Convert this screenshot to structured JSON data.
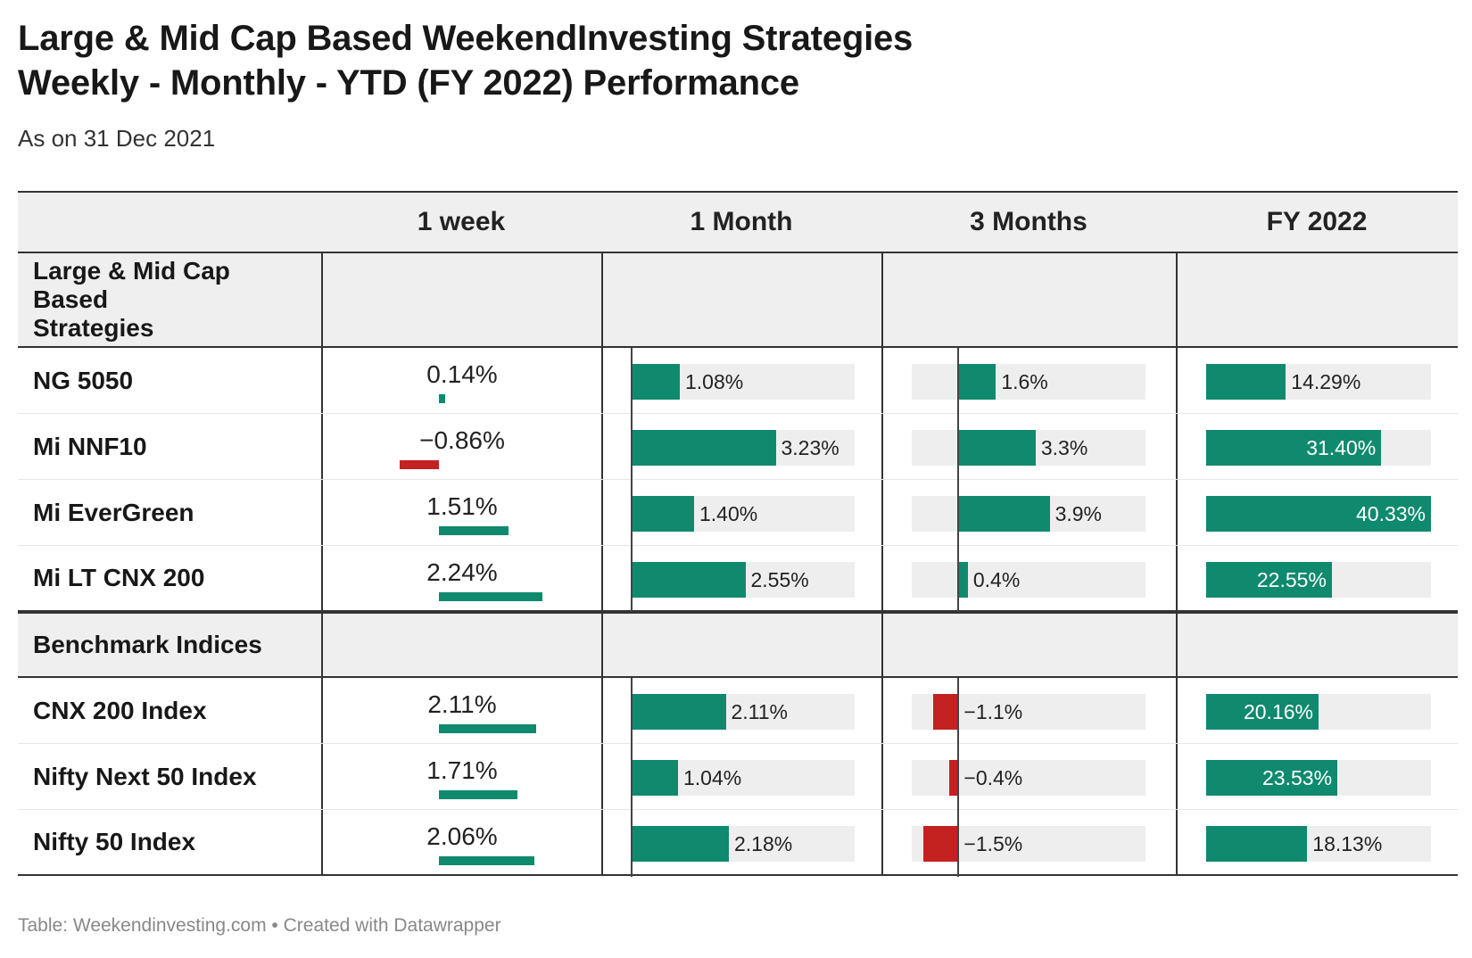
{
  "title_line1": "Large & Mid Cap Based WeekendInvesting Strategies",
  "title_line2": "Weekly - Monthly - YTD (FY 2022) Performance",
  "subtitle": "As on 31 Dec 2021",
  "footer": "Table: Weekendinvesting.com • Created with Datawrapper",
  "colors": {
    "positive": "#0f8a6e",
    "negative": "#c42121",
    "track": "#eeeeee"
  },
  "chart_data": {
    "type": "table",
    "columns": [
      "",
      "1 week",
      "1 Month",
      "3 Months",
      "FY 2022"
    ],
    "scales": {
      "week": [
        -2.5,
        2.5
      ],
      "month": [
        0,
        5
      ],
      "three_month": [
        -2,
        8
      ],
      "fy": [
        0,
        40.33
      ]
    },
    "sections": [
      {
        "label": "Large & Mid Cap Based Strategies",
        "rows": [
          {
            "name": "NG 5050",
            "week": 0.14,
            "week_label": "0.14%",
            "month": 1.08,
            "month_label": "1.08%",
            "three_month": 1.6,
            "three_month_label": "1.6%",
            "fy": 14.29,
            "fy_label": "14.29%"
          },
          {
            "name": "Mi NNF10",
            "week": -0.86,
            "week_label": "−0.86%",
            "month": 3.23,
            "month_label": "3.23%",
            "three_month": 3.3,
            "three_month_label": "3.3%",
            "fy": 31.4,
            "fy_label": "31.40%"
          },
          {
            "name": "Mi EverGreen",
            "week": 1.51,
            "week_label": "1.51%",
            "month": 1.4,
            "month_label": "1.40%",
            "three_month": 3.9,
            "three_month_label": "3.9%",
            "fy": 40.33,
            "fy_label": "40.33%"
          },
          {
            "name": "Mi LT CNX 200",
            "week": 2.24,
            "week_label": "2.24%",
            "month": 2.55,
            "month_label": "2.55%",
            "three_month": 0.4,
            "three_month_label": "0.4%",
            "fy": 22.55,
            "fy_label": "22.55%"
          }
        ]
      },
      {
        "label": "Benchmark Indices",
        "rows": [
          {
            "name": "CNX 200 Index",
            "week": 2.11,
            "week_label": "2.11%",
            "month": 2.11,
            "month_label": "2.11%",
            "three_month": -1.1,
            "three_month_label": "−1.1%",
            "fy": 20.16,
            "fy_label": "20.16%"
          },
          {
            "name": "Nifty Next 50 Index",
            "week": 1.71,
            "week_label": "1.71%",
            "month": 1.04,
            "month_label": "1.04%",
            "three_month": -0.4,
            "three_month_label": "−0.4%",
            "fy": 23.53,
            "fy_label": "23.53%"
          },
          {
            "name": "Nifty 50 Index",
            "week": 2.06,
            "week_label": "2.06%",
            "month": 2.18,
            "month_label": "2.18%",
            "three_month": -1.5,
            "three_month_label": "−1.5%",
            "fy": 18.13,
            "fy_label": "18.13%"
          }
        ]
      }
    ]
  }
}
